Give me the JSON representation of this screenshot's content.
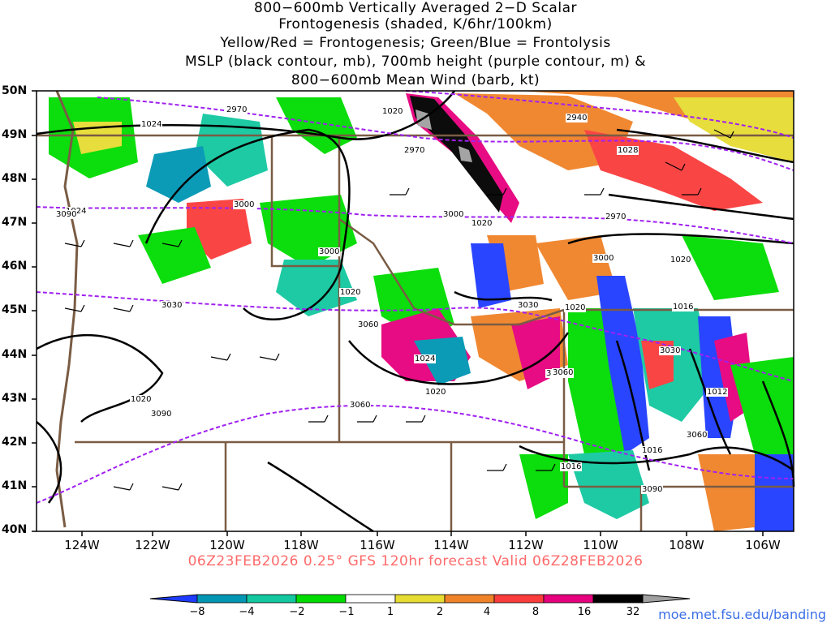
{
  "title_lines": [
    "800−600mb Vertically Averaged 2−D Scalar",
    "Frontogenesis (shaded, K/6hr/100km)",
    "Yellow/Red = Frontogenesis;  Green/Blue = Frontolysis",
    "MSLP (black contour, mb), 700mb height (purple contour, m) &",
    "800−600mb Mean Wind (barb, kt)"
  ],
  "lat_labels": [
    "50N",
    "49N",
    "48N",
    "47N",
    "46N",
    "45N",
    "44N",
    "43N",
    "42N",
    "41N",
    "40N"
  ],
  "lon_labels": [
    "124W",
    "122W",
    "120W",
    "118W",
    "116W",
    "114W",
    "112W",
    "110W",
    "108W",
    "106W"
  ],
  "footer": "06Z23FEB2026 0.25° GFS 120hr forecast Valid 06Z28FEB2026",
  "colorbar": {
    "labels": [
      "−8",
      "−4",
      "−2",
      "−1",
      "1",
      "2",
      "4",
      "8",
      "16",
      "32"
    ],
    "colors": [
      "#1e3cff",
      "#0096b4",
      "#13c8a0",
      "#00dc00",
      "#ffffff",
      "#e6dc32",
      "#f08228",
      "#fa3c3c",
      "#e6007d",
      "#000000",
      "#a0a0a0"
    ]
  },
  "contour_labels": {
    "mslp": [
      "1024",
      "1024",
      "1020",
      "1020",
      "1020",
      "1020",
      "1020",
      "1020",
      "1016",
      "1016",
      "1016",
      "1012",
      "1024",
      "1020",
      "1028",
      "1020"
    ],
    "height": [
      "2970",
      "2940",
      "2970",
      "2970",
      "3000",
      "3000",
      "3000",
      "3000",
      "3030",
      "3030",
      "3030",
      "3060",
      "3060",
      "3060",
      "3060",
      "3090",
      "3090",
      "3090",
      "3060"
    ]
  },
  "credit": "moe.met.fsu.edu/banding"
}
